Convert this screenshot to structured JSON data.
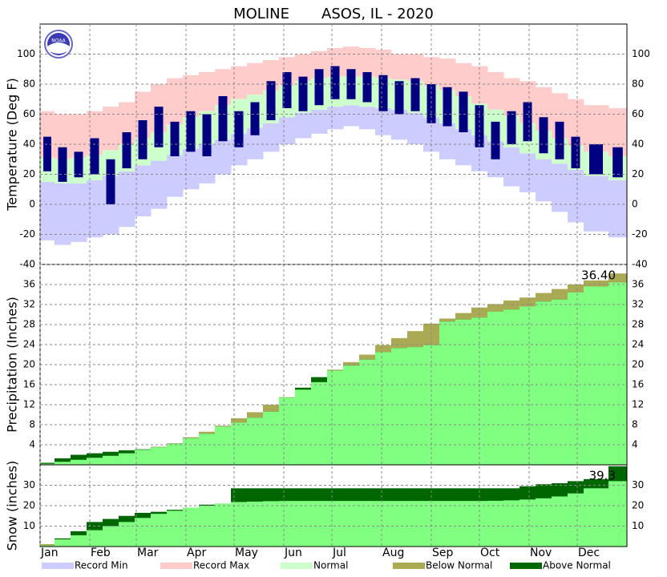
{
  "title": "MOLINE       ASOS, IL - 2020",
  "x": [
    5,
    15,
    25,
    35,
    45,
    55,
    65,
    75,
    85,
    95,
    105,
    115,
    125,
    135,
    145,
    155,
    165,
    175,
    185,
    195,
    205,
    215,
    225,
    235,
    245,
    255,
    265,
    275,
    285,
    295,
    305,
    315,
    325,
    335,
    345,
    366
  ],
  "xlim": [
    1,
    367
  ],
  "months": [
    "Jan",
    "Feb",
    "Mar",
    "Apr",
    "May",
    "Jun",
    "Jul",
    "Aug",
    "Sep",
    "Oct",
    "Nov",
    "Dec"
  ],
  "month_starts": [
    1,
    32,
    61,
    92,
    122,
    153,
    183,
    214,
    245,
    275,
    306,
    336
  ],
  "legend": [
    {
      "name": "Record Min",
      "color": "#ccccff"
    },
    {
      "name": "Record Max",
      "color": "#ffcccc"
    },
    {
      "name": "Normal",
      "color": "#ccffcc"
    },
    {
      "name": "Below Normal",
      "color": "#aaaa55"
    },
    {
      "name": "Above Normal",
      "color": "#006600"
    }
  ],
  "chart_data": [
    {
      "type": "temperature",
      "ylabel": "Temperature (Deg F)",
      "ylim": [
        -40,
        120
      ],
      "yticks": [
        -40,
        -20,
        0,
        20,
        40,
        60,
        80,
        100
      ],
      "grid": true,
      "record_min": [
        -24,
        -27,
        -25,
        -22,
        -20,
        -15,
        -8,
        -3,
        5,
        10,
        14,
        20,
        26,
        30,
        35,
        40,
        44,
        47,
        50,
        52,
        50,
        46,
        43,
        40,
        35,
        30,
        26,
        22,
        18,
        12,
        8,
        2,
        -5,
        -12,
        -18,
        -22
      ],
      "record_max": [
        62,
        60,
        60,
        62,
        65,
        68,
        75,
        80,
        84,
        86,
        88,
        90,
        92,
        94,
        96,
        98,
        100,
        102,
        104,
        105,
        104,
        103,
        100,
        100,
        98,
        97,
        94,
        92,
        88,
        84,
        82,
        78,
        74,
        70,
        66,
        64
      ],
      "normal_low": [
        15,
        14,
        14,
        16,
        19,
        22,
        26,
        29,
        33,
        37,
        40,
        43,
        47,
        51,
        54,
        58,
        61,
        63,
        65,
        66,
        65,
        64,
        63,
        61,
        58,
        54,
        50,
        46,
        42,
        38,
        34,
        30,
        27,
        23,
        19,
        16
      ],
      "normal_high": [
        31,
        30,
        31,
        33,
        36,
        40,
        44,
        48,
        53,
        58,
        62,
        66,
        70,
        73,
        76,
        79,
        82,
        84,
        85,
        85,
        85,
        84,
        83,
        82,
        79,
        76,
        72,
        67,
        63,
        59,
        54,
        49,
        44,
        39,
        35,
        32
      ],
      "observed_low": [
        22,
        15,
        18,
        20,
        0,
        24,
        30,
        38,
        32,
        35,
        32,
        42,
        38,
        46,
        56,
        64,
        62,
        66,
        70,
        70,
        68,
        62,
        60,
        62,
        54,
        52,
        48,
        38,
        30,
        40,
        42,
        34,
        30,
        24,
        20,
        18
      ],
      "observed_high": [
        45,
        38,
        35,
        44,
        30,
        48,
        56,
        65,
        55,
        62,
        60,
        72,
        62,
        68,
        82,
        88,
        85,
        90,
        92,
        90,
        88,
        86,
        82,
        84,
        80,
        78,
        75,
        66,
        55,
        62,
        68,
        58,
        55,
        45,
        40,
        38
      ],
      "observed_color": "#000080"
    },
    {
      "type": "accumulation",
      "ylabel": "Precipitation (Inches)",
      "ylim": [
        0,
        40
      ],
      "yticks": [
        4,
        8,
        12,
        16,
        20,
        24,
        28,
        32,
        36
      ],
      "grid": true,
      "observed": [
        0.4,
        1.3,
        2.0,
        2.3,
        2.6,
        2.9,
        3.1,
        3.5,
        4.2,
        5.3,
        6.2,
        7.6,
        8.4,
        9.4,
        10.6,
        13.4,
        15.4,
        17.5,
        18.8,
        19.8,
        21.0,
        22.5,
        23.3,
        23.5,
        23.9,
        28.6,
        29.0,
        29.4,
        30.6,
        31.0,
        31.6,
        32.6,
        33.0,
        34.4,
        35.6,
        36.4
      ],
      "normal": [
        0.2,
        0.6,
        1.0,
        1.4,
        1.8,
        2.3,
        3.0,
        3.6,
        4.3,
        5.5,
        6.6,
        7.8,
        9.3,
        10.5,
        12.0,
        13.5,
        15.0,
        16.5,
        19.0,
        20.5,
        22.0,
        23.9,
        25.3,
        26.7,
        28.2,
        29.2,
        30.3,
        31.4,
        32.1,
        32.8,
        33.4,
        34.3,
        35.1,
        36.0,
        36.8,
        38.2
      ],
      "total_label": "36.40",
      "observed_color": "#80ff80"
    },
    {
      "type": "accumulation",
      "ylabel": "Snow (inches)",
      "ylim": [
        0,
        40
      ],
      "yticks": [
        10,
        20,
        30
      ],
      "grid": true,
      "observed": [
        0.5,
        4,
        7.5,
        12,
        13.5,
        15,
        16.5,
        17,
        18,
        19,
        20.5,
        21,
        28.5,
        28.5,
        28.5,
        28.5,
        28.5,
        28.5,
        28.5,
        28.5,
        28.5,
        28.5,
        28.5,
        28.5,
        28.5,
        28.5,
        28.5,
        28.5,
        28.5,
        28.5,
        29.5,
        30.5,
        31,
        32,
        33,
        39.3
      ],
      "normal": [
        1.2,
        3.5,
        5.5,
        8,
        10,
        12,
        14,
        16,
        17.5,
        19,
        20,
        21,
        21.8,
        22,
        22.2,
        22.3,
        22.3,
        22.3,
        22.3,
        22.3,
        22.3,
        22.3,
        22.3,
        22.3,
        22.3,
        22.3,
        22.3,
        22.3,
        22.4,
        22.6,
        23,
        23.6,
        24.5,
        26,
        28.5,
        32
      ],
      "total_label": "39.3",
      "observed_color": "#80ff80"
    }
  ]
}
